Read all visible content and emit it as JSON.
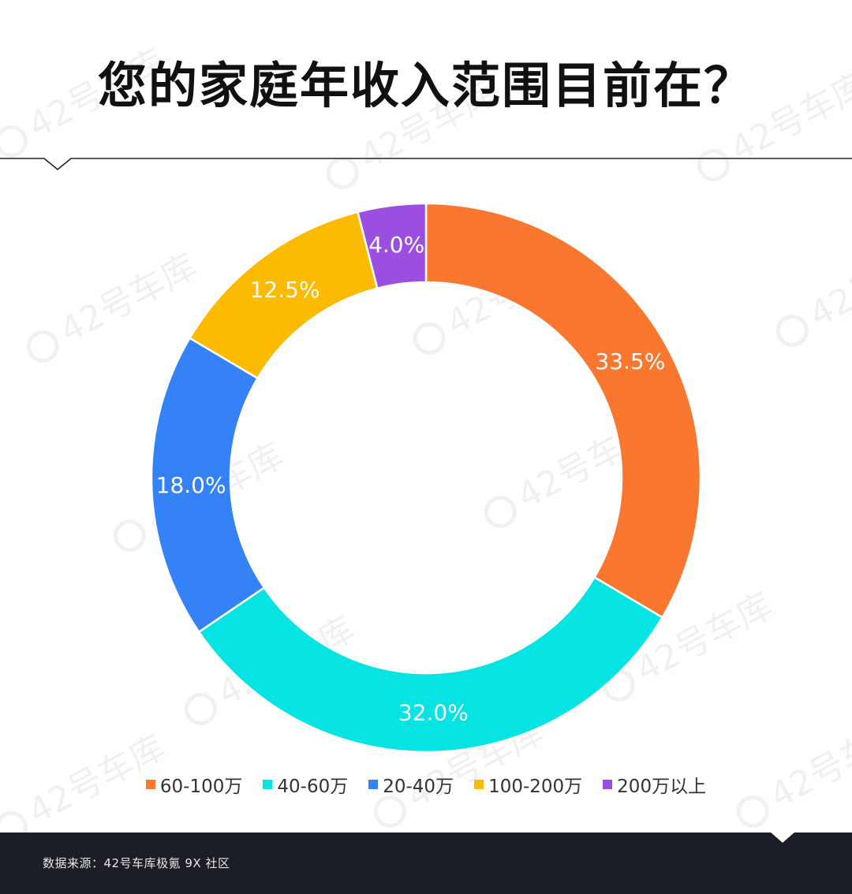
{
  "title": "您的家庭年收入范围目前在？",
  "watermark_text": "42号车库",
  "chart_data": {
    "type": "pie",
    "variant": "donut",
    "categories": [
      "60-100万",
      "40-60万",
      "20-40万",
      "100-200万",
      "200万以上"
    ],
    "values": [
      33.5,
      32.0,
      18.0,
      12.5,
      4.0
    ],
    "labels": [
      "33.5%",
      "32.0%",
      "18.0%",
      "12.5%",
      "4.0%"
    ],
    "colors": [
      "#f9772e",
      "#06e3e3",
      "#3482f6",
      "#fdbb00",
      "#9b4fe0"
    ],
    "start": "top, clockwise",
    "legend_position": "bottom"
  },
  "footer": {
    "source": "数据来源：42号车库极氪 9X 社区",
    "background_color": "#1b1e25"
  }
}
